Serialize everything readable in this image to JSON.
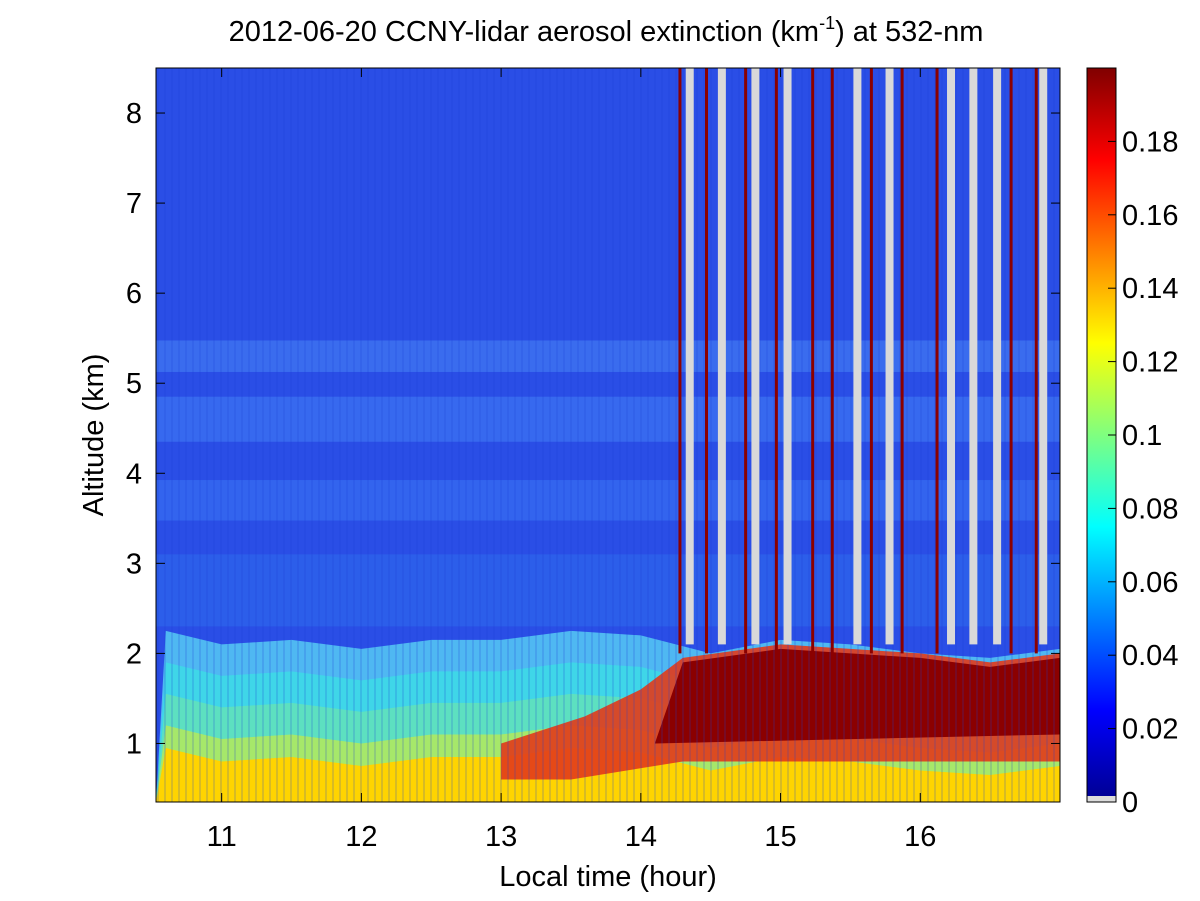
{
  "chart_data": {
    "type": "heatmap",
    "title": {
      "prefix": "2012-06-20 CCNY-lidar aerosol extinction (km",
      "superscript": "-1",
      "suffix": ") at 532-nm"
    },
    "xlabel": "Local time (hour)",
    "ylabel": "Altitude (km)",
    "xlim": [
      10.53,
      17.0
    ],
    "ylim": [
      0.35,
      8.5
    ],
    "x_ticks": [
      11,
      12,
      13,
      14,
      15,
      16
    ],
    "y_ticks": [
      1,
      2,
      3,
      4,
      5,
      6,
      7,
      8
    ],
    "colorbar": {
      "range": [
        0,
        0.2
      ],
      "ticks": [
        0,
        0.02,
        0.04,
        0.06,
        0.08,
        0.1,
        0.12,
        0.14,
        0.16,
        0.18
      ],
      "tick_labels": [
        "0",
        "0.02",
        "0.04",
        "0.06",
        "0.08",
        "0.1",
        "0.12",
        "0.14",
        "0.16",
        "0.18"
      ],
      "colormap": "jet"
    },
    "boundary_layer_top_km": {
      "time": [
        10.6,
        11.0,
        11.5,
        12.0,
        12.5,
        13.0,
        13.5,
        14.0,
        14.5,
        15.0,
        15.5,
        16.0,
        16.5,
        17.0
      ],
      "value": [
        2.25,
        2.1,
        2.15,
        2.05,
        2.15,
        2.15,
        2.25,
        2.2,
        2.0,
        2.15,
        2.1,
        2.0,
        1.95,
        2.05
      ]
    },
    "cloud_columns_hour": [
      14.28,
      14.47,
      14.75,
      14.97,
      15.23,
      15.37,
      15.65,
      15.87,
      16.12,
      16.65,
      16.83
    ],
    "no_data_gaps_hour": [
      14.35,
      14.58,
      14.82,
      15.05,
      15.55,
      15.78,
      16.22,
      16.38,
      16.55,
      16.88
    ]
  }
}
